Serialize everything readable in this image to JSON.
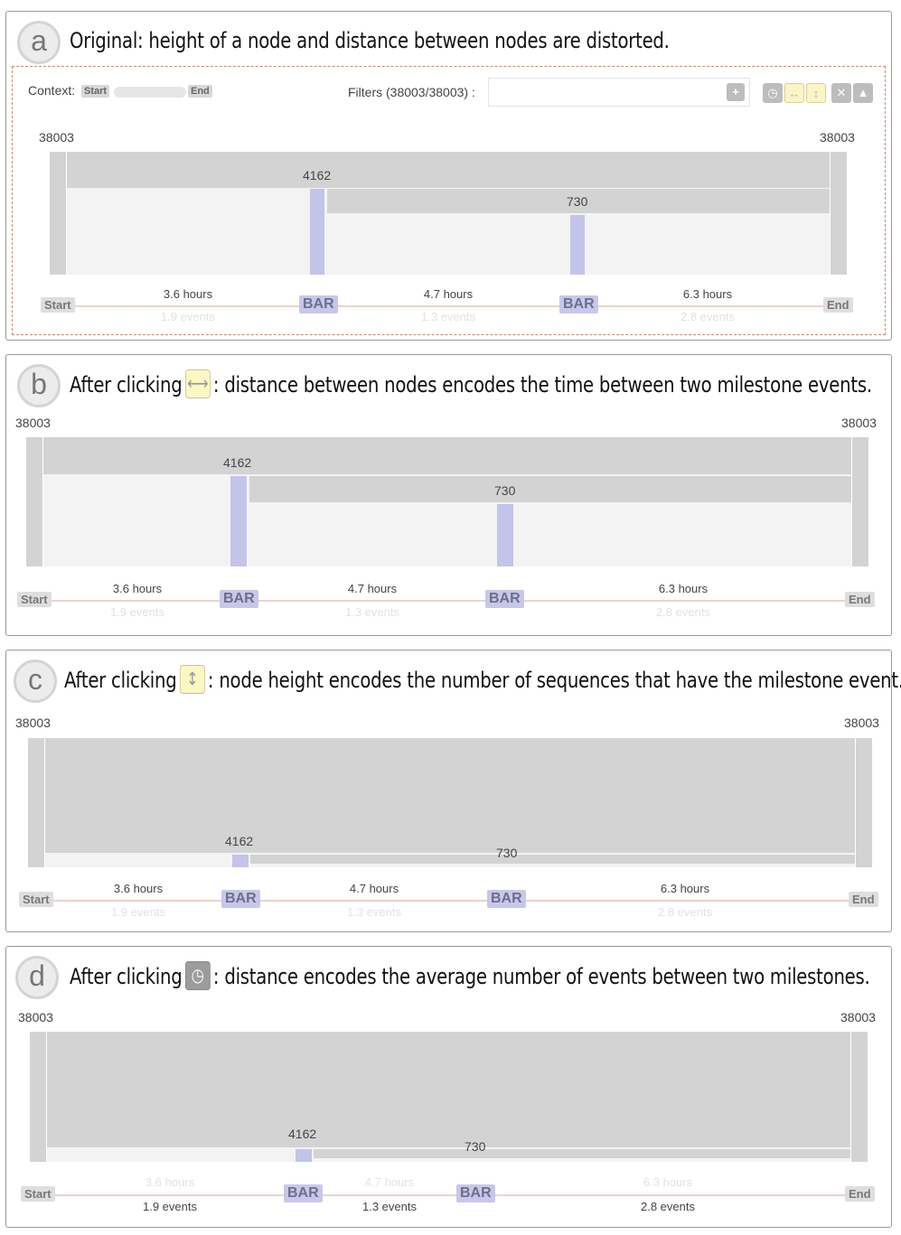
{
  "panels": {
    "a": {
      "letter": "a",
      "title": "Original: height of a node and distance between nodes are distorted."
    },
    "b": {
      "letter": "b",
      "title_pre": "After clicking",
      "title_post": ": distance between nodes encodes the time between two milestone events."
    },
    "c": {
      "letter": "c",
      "title_pre": "After clicking",
      "title_post": ": node height encodes the number of sequences that have the milestone event."
    },
    "d": {
      "letter": "d",
      "title_pre": "After clicking",
      "title_post": ": distance encodes the average number of events between two milestones."
    }
  },
  "toolbar": {
    "context_label": "Context:",
    "start_label": "Start",
    "end_label": "End",
    "filters_label": "Filters (38003/38003) :",
    "add_icon": "plus-icon",
    "clock_icon": "clock-icon",
    "horizontal_icon": "horizontal-arrows-icon",
    "vertical_icon": "vertical-arrows-icon",
    "close_icon": "close-icon",
    "collapse_icon": "caret-up-icon"
  },
  "flow": {
    "total": "38003",
    "node1_count": "4162",
    "node2_count": "730",
    "start_label": "Start",
    "end_label": "End",
    "milestone_label": "BAR",
    "gaps": [
      {
        "hours": "3.6 hours",
        "events": "1.9 events"
      },
      {
        "hours": "4.7 hours",
        "events": "1.3 events"
      },
      {
        "hours": "6.3 hours",
        "events": "2.8 events"
      }
    ]
  },
  "colors": {
    "node": "#c4c3e9",
    "flow": "#d3d3d3",
    "highlight_button": "#fdf7c4"
  }
}
